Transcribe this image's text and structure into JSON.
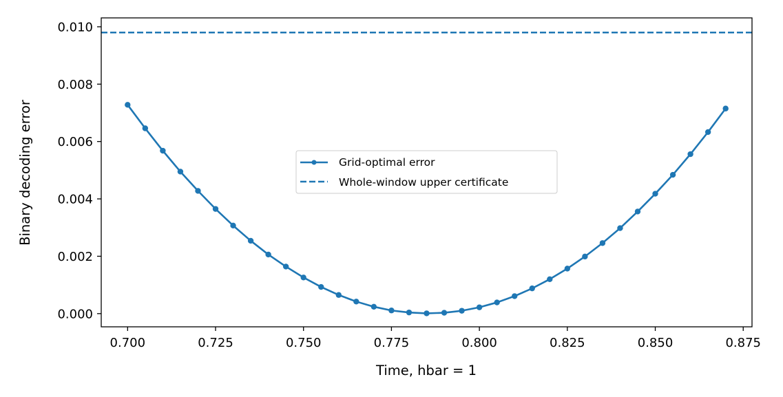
{
  "chart_data": {
    "type": "line",
    "title": "",
    "xlabel": "Time, hbar = 1",
    "ylabel": "Binary decoding error",
    "xlim": [
      0.6925,
      0.8775
    ],
    "ylim": [
      -0.00046,
      0.01031
    ],
    "xticks": [
      "0.700",
      "0.725",
      "0.750",
      "0.775",
      "0.800",
      "0.825",
      "0.850",
      "0.875"
    ],
    "xtick_values": [
      0.7,
      0.725,
      0.75,
      0.775,
      0.8,
      0.825,
      0.85,
      0.875
    ],
    "yticks": [
      "0.000",
      "0.002",
      "0.004",
      "0.006",
      "0.008",
      "0.010"
    ],
    "ytick_values": [
      0.0,
      0.002,
      0.004,
      0.006,
      0.008,
      0.01
    ],
    "grid": false,
    "legend_position": "center",
    "series": [
      {
        "name": "Grid-optimal error",
        "style": "solid line with circle markers",
        "color": "#1f77b4",
        "x": [
          0.7,
          0.705,
          0.71,
          0.715,
          0.72,
          0.725,
          0.73,
          0.735,
          0.74,
          0.745,
          0.75,
          0.755,
          0.76,
          0.765,
          0.77,
          0.775,
          0.78,
          0.785,
          0.79,
          0.795,
          0.8,
          0.805,
          0.81,
          0.815,
          0.82,
          0.825,
          0.83,
          0.835,
          0.84,
          0.845,
          0.85,
          0.855,
          0.86,
          0.865,
          0.87
        ],
        "y": [
          0.00728,
          0.00646,
          0.00568,
          0.00495,
          0.00428,
          0.00365,
          0.00307,
          0.00254,
          0.00206,
          0.00164,
          0.00126,
          0.00093,
          0.00065,
          0.00042,
          0.00024,
          0.00011,
          4e-05,
          1e-05,
          3e-05,
          0.0001,
          0.00022,
          0.00039,
          0.00061,
          0.00088,
          0.0012,
          0.00157,
          0.00199,
          0.00246,
          0.00298,
          0.00356,
          0.00418,
          0.00484,
          0.00556,
          0.00633,
          0.00715
        ]
      },
      {
        "name": "Whole-window upper certificate",
        "style": "dashed horizontal line",
        "color": "#1f77b4",
        "y": 0.0098
      }
    ]
  }
}
